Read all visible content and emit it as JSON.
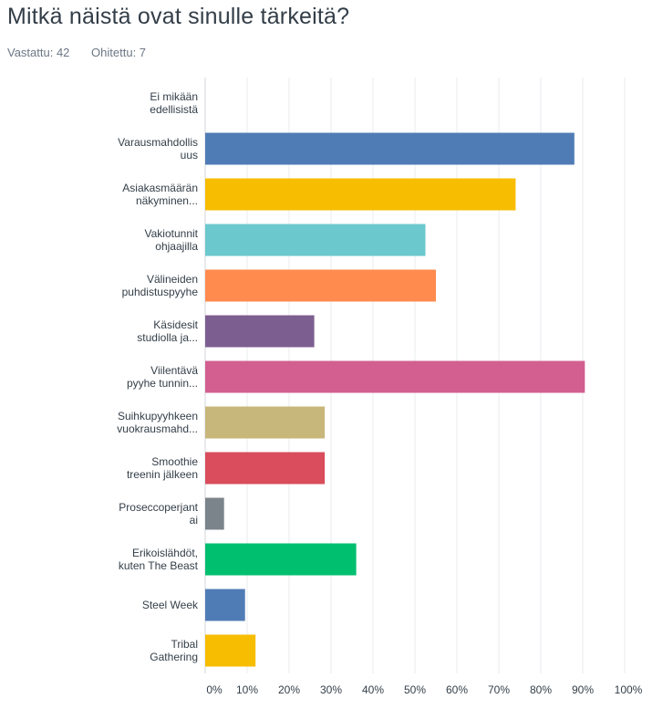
{
  "question_title": "Mitkä näistä ovat sinulle tärkeitä?",
  "answered_label": "Vastattu: 42",
  "skipped_label": "Ohitettu: 7",
  "chart_data": {
    "type": "bar",
    "orientation": "horizontal",
    "categories": [
      [
        "Ei mikään",
        "edellisistä"
      ],
      [
        "Varausmahdollis",
        "uus"
      ],
      [
        "Asiakasmäärän",
        "näkyminen..."
      ],
      [
        "Vakiotunnit",
        "ohjaajilla"
      ],
      [
        "Välineiden",
        "puhdistuspyyhe"
      ],
      [
        "Käsidesit",
        "studiolla ja..."
      ],
      [
        "Viilentävä",
        "pyyhe tunnin..."
      ],
      [
        "Suihkupyyhkeen",
        "vuokrausmahd..."
      ],
      [
        "Smoothie",
        "treenin jälkeen"
      ],
      [
        "Proseccoperjant",
        "ai"
      ],
      [
        "Erikoislähdöt,",
        "kuten The Beast"
      ],
      [
        "Steel Week"
      ],
      [
        "Tribal",
        "Gathering"
      ]
    ],
    "values": [
      0,
      88,
      74,
      52.5,
      55,
      26,
      90.5,
      28.5,
      28.5,
      4.5,
      36,
      9.5,
      12
    ],
    "colors": [
      "#507cb6",
      "#507cb6",
      "#f7bd00",
      "#6bc8cd",
      "#ff8b4f",
      "#7d5e90",
      "#d25f90",
      "#c8b77a",
      "#d94d5c",
      "#7b848b",
      "#00bf6f",
      "#507cb6",
      "#f7bd00"
    ],
    "xlim": [
      0,
      100
    ],
    "xticks": [
      "0%",
      "10%",
      "20%",
      "30%",
      "40%",
      "50%",
      "60%",
      "70%",
      "80%",
      "90%",
      "100%"
    ],
    "grid": true,
    "grid_color": "#e8ebef"
  }
}
